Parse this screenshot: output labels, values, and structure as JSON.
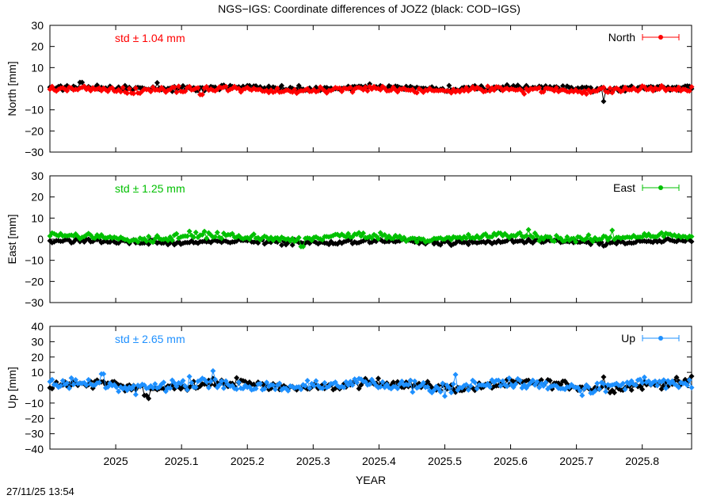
{
  "title": "NGS−IGS: Coordinate differences of JOZ2 (black: COD−IGS)",
  "timestamp": "27/11/25 13:54",
  "chart_data": [
    {
      "type": "line",
      "ylabel": "North [mm]",
      "xlabel": "",
      "xlim": [
        2024.9,
        2025.875
      ],
      "ylim": [
        -30,
        30
      ],
      "yticks": [
        -30,
        -20,
        -10,
        0,
        10,
        20,
        30
      ],
      "xticks": [
        2025,
        2025.1,
        2025.2,
        2025.3,
        2025.4,
        2025.5,
        2025.6,
        2025.7,
        2025.8
      ],
      "grid": false,
      "legend_position": "top-right",
      "std_label": "std ± 1.04 mm",
      "color": "#ff0000",
      "series": [
        {
          "name": "",
          "color": "#000000",
          "mean": 0.3,
          "noise": 0.9,
          "wave": 0.4,
          "spikes": [
            [
              2024.947,
              3.0
            ],
            [
              2025.063,
              2.8
            ],
            [
              2025.742,
              -6.0
            ]
          ]
        },
        {
          "name": "North",
          "color": "#ff0000",
          "mean": -0.5,
          "noise": 1.0,
          "wave": 0.5,
          "spikes": [
            [
              2025.13,
              -2.8
            ],
            [
              2025.62,
              -2.5
            ]
          ]
        }
      ]
    },
    {
      "type": "line",
      "ylabel": "East [mm]",
      "xlabel": "",
      "xlim": [
        2024.9,
        2025.875
      ],
      "ylim": [
        -30,
        30
      ],
      "yticks": [
        -30,
        -20,
        -10,
        0,
        10,
        20,
        30
      ],
      "xticks": [
        2025,
        2025.1,
        2025.2,
        2025.3,
        2025.4,
        2025.5,
        2025.6,
        2025.7,
        2025.8
      ],
      "grid": false,
      "legend_position": "top-right",
      "std_label": "std ± 1.25 mm",
      "color": "#00c000",
      "series": [
        {
          "name": "",
          "color": "#000000",
          "mean": -1.2,
          "noise": 0.8,
          "wave": 0.5,
          "spikes": [
            [
              2025.742,
              -3.2
            ]
          ]
        },
        {
          "name": "East",
          "color": "#00c000",
          "mean": 0.9,
          "noise": 1.1,
          "wave": 1.0,
          "spikes": [
            [
              2025.283,
              -3.5
            ],
            [
              2025.628,
              4.5
            ],
            [
              2025.755,
              4.2
            ]
          ]
        }
      ]
    },
    {
      "type": "line",
      "ylabel": "Up [mm]",
      "xlabel": "YEAR",
      "xlim": [
        2024.9,
        2025.875
      ],
      "ylim": [
        -40,
        40
      ],
      "yticks": [
        -40,
        -30,
        -20,
        -10,
        0,
        10,
        20,
        30,
        40
      ],
      "xticks": [
        2025,
        2025.1,
        2025.2,
        2025.3,
        2025.4,
        2025.5,
        2025.6,
        2025.7,
        2025.8
      ],
      "xticklabels": [
        "2025",
        "2025.1",
        "2025.2",
        "2025.3",
        "2025.4",
        "2025.5",
        "2025.6",
        "2025.7",
        "2025.8"
      ],
      "grid": false,
      "legend_position": "top-right",
      "std_label": "std ± 2.65 mm",
      "color": "#1e90ff",
      "series": [
        {
          "name": "",
          "color": "#000000",
          "mean": 1.5,
          "noise": 2.0,
          "wave": 1.8,
          "spikes": [
            [
              2025.05,
              -7.0
            ],
            [
              2025.045,
              -5.0
            ],
            [
              2025.74,
              7.0
            ],
            [
              2025.875,
              7.5
            ]
          ]
        },
        {
          "name": "Up",
          "color": "#1e90ff",
          "mean": 1.5,
          "noise": 2.5,
          "wave": 1.5,
          "spikes": [
            [
              2024.98,
              9.0
            ],
            [
              2025.148,
              11.0
            ],
            [
              2025.515,
              8.5
            ],
            [
              2025.5,
              -5.5
            ],
            [
              2025.71,
              -5.0
            ]
          ]
        }
      ]
    }
  ]
}
